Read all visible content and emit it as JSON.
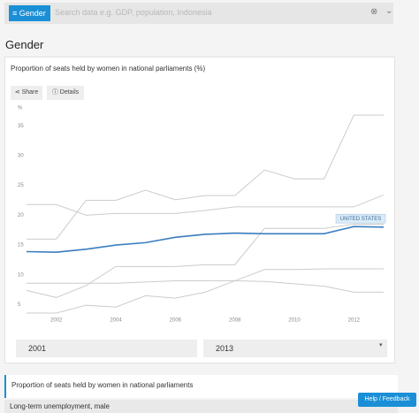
{
  "search": {
    "chip": "Gender",
    "placeholder": "Search data e.g. GDP, population, Indonesia"
  },
  "heading": "Gender",
  "buttons": [
    "Share",
    "Details"
  ],
  "range": {
    "from": "2001",
    "to": "2013"
  },
  "indicators": [
    "Proportion of seats held by women in national parliaments",
    "Long-term unemployment, male"
  ],
  "help": "Help / Feedback",
  "chart_data": {
    "type": "line",
    "title": "Proportion of seats held by women in national parliaments (%)",
    "y_label": "%",
    "x": [
      2001,
      2002,
      2003,
      2004,
      2005,
      2006,
      2007,
      2008,
      2009,
      2010,
      2011,
      2012,
      2013
    ],
    "xlim": [
      2001,
      2013
    ],
    "xticks": [
      2002,
      2004,
      2006,
      2008,
      2010,
      2012
    ],
    "ylim": [
      3,
      38
    ],
    "yticks": [
      5,
      10,
      15,
      20,
      25,
      30,
      35
    ],
    "series": [
      {
        "color": "#cccccc",
        "values": [
          16.0,
          16.0,
          22.5,
          22.5,
          24.2,
          22.6,
          23.3,
          23.3,
          27.6,
          26.1,
          26.1,
          36.8,
          36.8
        ]
      },
      {
        "color": "#cccccc",
        "values": [
          21.8,
          21.8,
          20.0,
          20.3,
          20.3,
          20.3,
          20.8,
          21.4,
          21.4,
          21.4,
          21.4,
          21.4,
          23.4
        ]
      },
      {
        "color": "#cccccc",
        "values": [
          7.4,
          6.2,
          8.2,
          11.4,
          11.4,
          11.4,
          11.7,
          11.7,
          17.8,
          17.8,
          17.8,
          18.5,
          18.5
        ]
      },
      {
        "color": "#cccccc",
        "values": [
          8.6,
          8.6,
          8.6,
          8.6,
          8.8,
          9.0,
          9.0,
          9.0,
          10.9,
          10.9,
          11.0,
          11.0,
          11.0
        ]
      },
      {
        "color": "#cccccc",
        "values": [
          3.6,
          3.6,
          4.9,
          4.6,
          6.5,
          6.1,
          7.1,
          9.0,
          8.9,
          8.5,
          8.1,
          7.1,
          7.1
        ]
      },
      {
        "name": "UNITED STATES",
        "color": "#3a7dbf",
        "values": [
          13.9,
          13.8,
          14.3,
          15.0,
          15.4,
          16.3,
          16.8,
          17.0,
          16.9,
          16.9,
          16.9,
          18.1,
          18.0
        ]
      }
    ]
  }
}
